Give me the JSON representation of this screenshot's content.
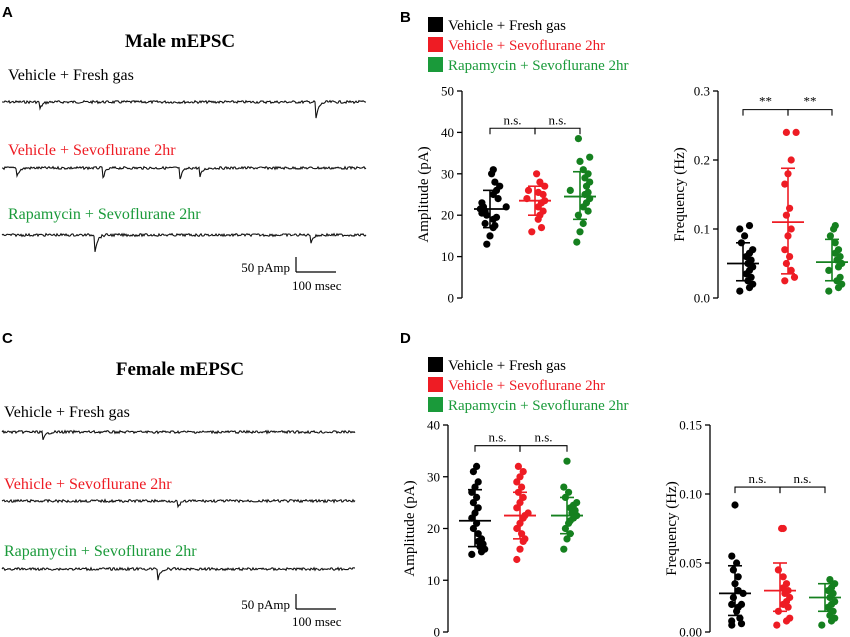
{
  "colors": {
    "group1": "#000000",
    "group2": "#ee1c24",
    "group3": "#1a9a3a",
    "group3_points": "#15801f",
    "trace": "#111111"
  },
  "panels": {
    "A": "A",
    "B": "B",
    "C": "C",
    "D": "D"
  },
  "male": {
    "title": "Male mEPSC",
    "traces": [
      "Vehicle + Fresh gas",
      "Vehicle + Sevoflurane 2hr",
      "Rapamycin + Sevoflurane 2hr"
    ],
    "scale_amp": "50 pAmp",
    "scale_time": "100 msec"
  },
  "female": {
    "title": "Female mEPSC",
    "traces": [
      "Vehicle + Fresh gas",
      "Vehicle + Sevoflurane 2hr",
      "Rapamycin + Sevoflurane 2hr"
    ],
    "scale_amp": "50 pAmp",
    "scale_time": "100 msec"
  },
  "legend": [
    "Vehicle + Fresh gas",
    "Vehicle + Sevoflurane 2hr",
    "Rapamycin + Sevoflurane 2hr"
  ],
  "chart_data": [
    {
      "id": "male-amplitude",
      "type": "scatter",
      "ylabel": "Amplitude (pA)",
      "ylim": [
        0,
        50
      ],
      "yticks": [
        "0",
        "10",
        "20",
        "30",
        "40",
        "50"
      ],
      "groups": [
        {
          "name": "Vehicle + Fresh gas",
          "mean": 21.5,
          "sd_low": 17,
          "sd_high": 26,
          "values": [
            13,
            15,
            17,
            17.5,
            18,
            19,
            19.5,
            20,
            20.5,
            21,
            21.5,
            22,
            22,
            23,
            24,
            25,
            26,
            27,
            28,
            30,
            31
          ]
        },
        {
          "name": "Vehicle + Sevoflurane 2hr",
          "mean": 23.5,
          "sd_low": 20,
          "sd_high": 27,
          "values": [
            16,
            17,
            19,
            20,
            21,
            22,
            23,
            23.5,
            24,
            25,
            25.5,
            26,
            27,
            28,
            30
          ]
        },
        {
          "name": "Rapamycin + Sevoflurane 2hr",
          "mean": 24.5,
          "sd_low": 19,
          "sd_high": 30.5,
          "values": [
            13.5,
            16,
            18,
            20,
            21,
            22,
            23,
            24,
            25,
            25.5,
            26,
            27,
            28,
            29,
            30,
            31,
            33,
            34,
            38.5
          ]
        }
      ],
      "significance": [
        {
          "from": 0,
          "to": 1,
          "label": "n.s.",
          "y": 41
        },
        {
          "from": 1,
          "to": 2,
          "label": "n.s.",
          "y": 41
        }
      ]
    },
    {
      "id": "male-frequency",
      "type": "scatter",
      "ylabel": "Frequency (Hz)",
      "ylim": [
        0,
        0.3
      ],
      "yticks": [
        "0.0",
        "0.1",
        "0.2",
        "0.3"
      ],
      "groups": [
        {
          "name": "Vehicle + Fresh gas",
          "mean": 0.05,
          "sd_low": 0.025,
          "sd_high": 0.08,
          "values": [
            0.01,
            0.015,
            0.02,
            0.025,
            0.03,
            0.035,
            0.04,
            0.045,
            0.05,
            0.055,
            0.06,
            0.065,
            0.07,
            0.08,
            0.09,
            0.1,
            0.105
          ]
        },
        {
          "name": "Vehicle + Sevoflurane 2hr",
          "mean": 0.11,
          "sd_low": 0.035,
          "sd_high": 0.188,
          "values": [
            0.025,
            0.03,
            0.04,
            0.05,
            0.06,
            0.07,
            0.09,
            0.1,
            0.12,
            0.13,
            0.165,
            0.18,
            0.2,
            0.24,
            0.24
          ]
        },
        {
          "name": "Rapamycin + Sevoflurane 2hr",
          "mean": 0.052,
          "sd_low": 0.025,
          "sd_high": 0.085,
          "values": [
            0.01,
            0.015,
            0.02,
            0.025,
            0.03,
            0.04,
            0.045,
            0.05,
            0.055,
            0.06,
            0.065,
            0.07,
            0.08,
            0.09,
            0.1,
            0.105
          ]
        }
      ],
      "significance": [
        {
          "from": 0,
          "to": 1,
          "label": "**",
          "y": 0.273
        },
        {
          "from": 1,
          "to": 2,
          "label": "**",
          "y": 0.273
        }
      ]
    },
    {
      "id": "female-amplitude",
      "type": "scatter",
      "ylabel": "Amplitude (pA)",
      "ylim": [
        0,
        40
      ],
      "yticks": [
        "0",
        "10",
        "20",
        "30",
        "40"
      ],
      "groups": [
        {
          "name": "Vehicle + Fresh gas",
          "mean": 21.5,
          "sd_low": 16.5,
          "sd_high": 27.5,
          "values": [
            15,
            15.5,
            16,
            16.5,
            17,
            17.5,
            18,
            19,
            20,
            21,
            22,
            23,
            24,
            25,
            26,
            27,
            28,
            29,
            31,
            32
          ]
        },
        {
          "name": "Vehicle + Sevoflurane 2hr",
          "mean": 22.5,
          "sd_low": 18,
          "sd_high": 27,
          "values": [
            14,
            16,
            17.5,
            18,
            19,
            20,
            21,
            22,
            22.5,
            23,
            24,
            25,
            26,
            27,
            28,
            29,
            30,
            31,
            32
          ]
        },
        {
          "name": "Rapamycin + Sevoflurane 2hr",
          "mean": 22.5,
          "sd_low": 19,
          "sd_high": 26,
          "values": [
            16,
            18,
            19,
            20,
            21,
            21.5,
            22,
            22.5,
            23,
            23.5,
            24,
            24.5,
            25,
            26,
            27,
            28,
            33
          ]
        }
      ],
      "significance": [
        {
          "from": 0,
          "to": 1,
          "label": "n.s.",
          "y": 36
        },
        {
          "from": 1,
          "to": 2,
          "label": "n.s.",
          "y": 36
        }
      ]
    },
    {
      "id": "female-frequency",
      "type": "scatter",
      "ylabel": "Frequency (Hz)",
      "ylim": [
        0,
        0.15
      ],
      "yticks": [
        "0.00",
        "0.05",
        "0.10",
        "0.15"
      ],
      "groups": [
        {
          "name": "Vehicle + Fresh gas",
          "mean": 0.028,
          "sd_low": 0.012,
          "sd_high": 0.048,
          "values": [
            0.005,
            0.006,
            0.008,
            0.01,
            0.015,
            0.018,
            0.02,
            0.02,
            0.025,
            0.028,
            0.03,
            0.035,
            0.04,
            0.045,
            0.05,
            0.055,
            0.092
          ]
        },
        {
          "name": "Vehicle + Sevoflurane 2hr",
          "mean": 0.03,
          "sd_low": 0.015,
          "sd_high": 0.05,
          "values": [
            0.005,
            0.008,
            0.01,
            0.015,
            0.018,
            0.02,
            0.022,
            0.025,
            0.028,
            0.03,
            0.032,
            0.035,
            0.04,
            0.045,
            0.075,
            0.075
          ]
        },
        {
          "name": "Rapamycin + Sevoflurane 2hr",
          "mean": 0.025,
          "sd_low": 0.015,
          "sd_high": 0.035,
          "values": [
            0.005,
            0.008,
            0.01,
            0.012,
            0.015,
            0.018,
            0.02,
            0.022,
            0.025,
            0.028,
            0.03,
            0.032,
            0.035,
            0.038
          ]
        }
      ],
      "significance": [
        {
          "from": 0,
          "to": 1,
          "label": "n.s.",
          "y": 0.105
        },
        {
          "from": 1,
          "to": 2,
          "label": "n.s.",
          "y": 0.105
        }
      ]
    }
  ]
}
